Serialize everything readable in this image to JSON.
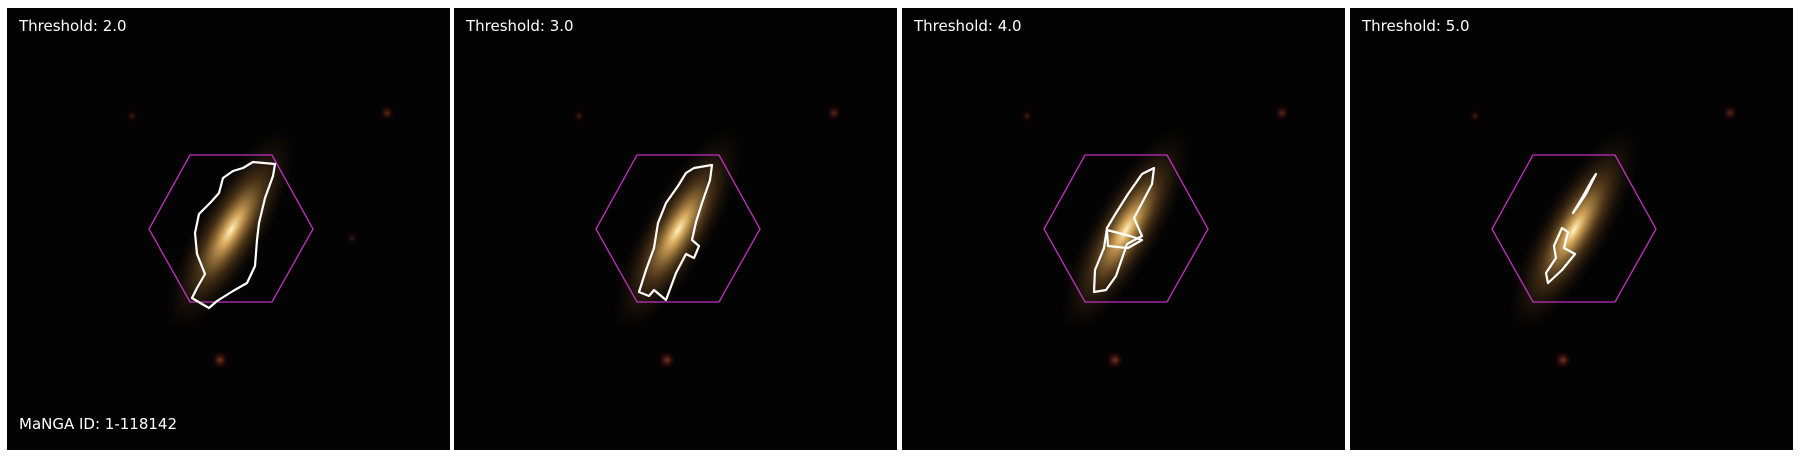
{
  "figure": {
    "panels": [
      {
        "threshold_label": "Threshold: 2.0"
      },
      {
        "threshold_label": "Threshold: 3.0"
      },
      {
        "threshold_label": "Threshold: 4.0"
      },
      {
        "threshold_label": "Threshold: 5.0"
      }
    ],
    "id_label": "MaNGA ID: 1-118142",
    "colors": {
      "background": "#040303",
      "galaxy_core": "#fff2b8",
      "galaxy_halo": "#a07838",
      "hexagon": "#c030c0",
      "contour": "#ffffff"
    }
  }
}
